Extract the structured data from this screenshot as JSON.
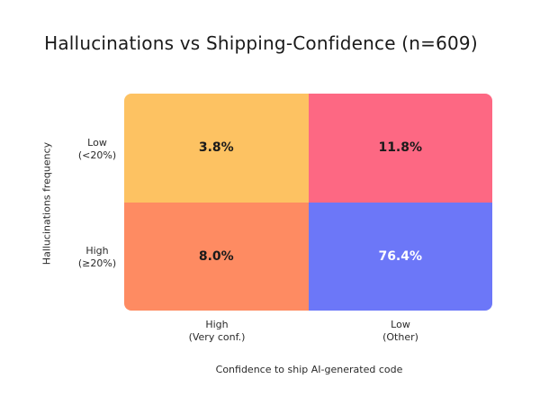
{
  "chart_data": {
    "type": "heatmap",
    "title": "Hallucinations vs Shipping-Confidence (n=609)",
    "xlabel": "Confidence to ship AI-generated code",
    "ylabel": "Hallucinations frequency",
    "x_categories": [
      "High\n(Very conf.)",
      "Low\n(Other)"
    ],
    "y_categories": [
      "Low\n(<20%)",
      "High\n(≥20%)"
    ],
    "values": [
      [
        3.8,
        11.8
      ],
      [
        8.0,
        76.4
      ]
    ],
    "value_labels": [
      [
        "3.8%",
        "11.8%"
      ],
      [
        "8.0%",
        "76.4%"
      ]
    ],
    "unit": "%",
    "cell_colors": [
      [
        "#fdc262",
        "#fd6883"
      ],
      [
        "#fe8b62",
        "#6c77f8"
      ]
    ],
    "label_colors": [
      [
        "#1a1a1a",
        "#1a1a1a"
      ],
      [
        "#1a1a1a",
        "#ffffff"
      ]
    ]
  }
}
